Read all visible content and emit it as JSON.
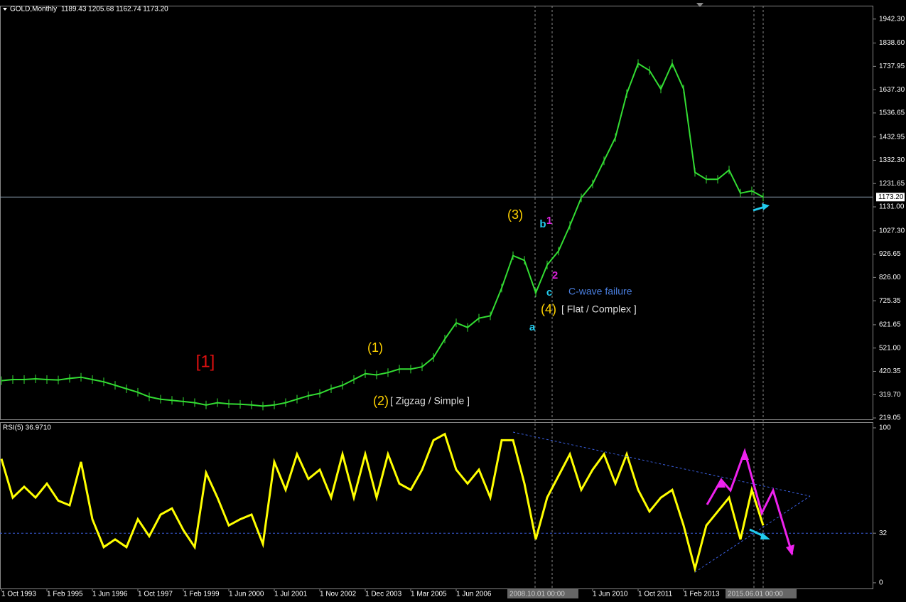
{
  "chart_data": [
    {
      "type": "line",
      "title": "GOLD,Monthly",
      "ohlc_text": "1189.43 1205.68 1162.74 1173.20",
      "color": "#33dd33",
      "values": [
        380,
        385,
        385,
        388,
        385,
        383,
        390,
        395,
        385,
        375,
        360,
        345,
        330,
        310,
        300,
        295,
        290,
        285,
        275,
        285,
        280,
        278,
        275,
        270,
        275,
        285,
        300,
        315,
        325,
        345,
        360,
        385,
        410,
        405,
        415,
        430,
        430,
        440,
        480,
        560,
        630,
        610,
        650,
        660,
        780,
        920,
        900,
        760,
        880,
        940,
        1050,
        1170,
        1230,
        1330,
        1430,
        1620,
        1750,
        1720,
        1640,
        1750,
        1640,
        1280,
        1250,
        1250,
        1290,
        1190,
        1200,
        1173.2
      ],
      "ylim": [
        213,
        2000
      ],
      "yticks": [
        {
          "value": 1942.3,
          "label": "1942.30"
        },
        {
          "value": 1838.6,
          "label": "1838.60"
        },
        1737.95,
        {
          "value": 1637.3,
          "label": "1637.30"
        },
        1536.65,
        1432.95,
        {
          "value": 1332.3,
          "label": "1332.30"
        },
        1231.65,
        {
          "value": 1131,
          "label": "1131.00"
        },
        {
          "value": 1027.3,
          "label": "1027.30"
        },
        926.65,
        {
          "value": 826,
          "label": "826.00"
        },
        725.35,
        621.65,
        {
          "value": 521,
          "label": "521.00"
        },
        420.35,
        {
          "value": 319.7,
          "label": "319.70"
        },
        219.05
      ],
      "last": {
        "value": 1173.2,
        "label": "1173.20"
      },
      "x_labels": [
        "1 Oct 1993",
        "1 Feb 1995",
        "1 Jun 1996",
        "1 Oct 1997",
        "1 Feb 1999",
        "1 Jun 2000",
        "1 Jul 2001",
        "1 Nov 2002",
        "1 Dec 2003",
        "1 Mar 2005",
        "1 Jun 2006",
        null,
        null,
        "1 Jun 2010",
        "1 Oct 2011",
        "1 Feb 2013"
      ],
      "cursor_labels": [
        "2008.10.01 00:00",
        "2015.06.01 00:00"
      ],
      "annotations": [
        "[1]",
        "(1)",
        "(2)",
        "[ Zigzag / Simple ]",
        "(3)",
        "b",
        "1",
        "2",
        "c",
        "C-wave failure",
        "(4)",
        "[ Flat / Complex ]",
        "a"
      ]
    },
    {
      "type": "line",
      "title": "RSI(5) 36.9710",
      "color": "#ffff00",
      "values": [
        80,
        55,
        62,
        55,
        64,
        53,
        50,
        78,
        41,
        23,
        28,
        23,
        41,
        30,
        44,
        48,
        34,
        23,
        71,
        55,
        37,
        41,
        44,
        25,
        78,
        60,
        83,
        67,
        73,
        55,
        83,
        55,
        83,
        55,
        83,
        64,
        60,
        73,
        92,
        96,
        73,
        64,
        73,
        55,
        92,
        92,
        64,
        28,
        55,
        69,
        83,
        60,
        73,
        83,
        64,
        83,
        60,
        46,
        55,
        60,
        37,
        9,
        37,
        46,
        55,
        28,
        60,
        37
      ],
      "ylim": [
        -3.7,
        103.2
      ],
      "yticks": [
        100,
        32,
        0
      ],
      "levels": [
        32
      ]
    }
  ]
}
